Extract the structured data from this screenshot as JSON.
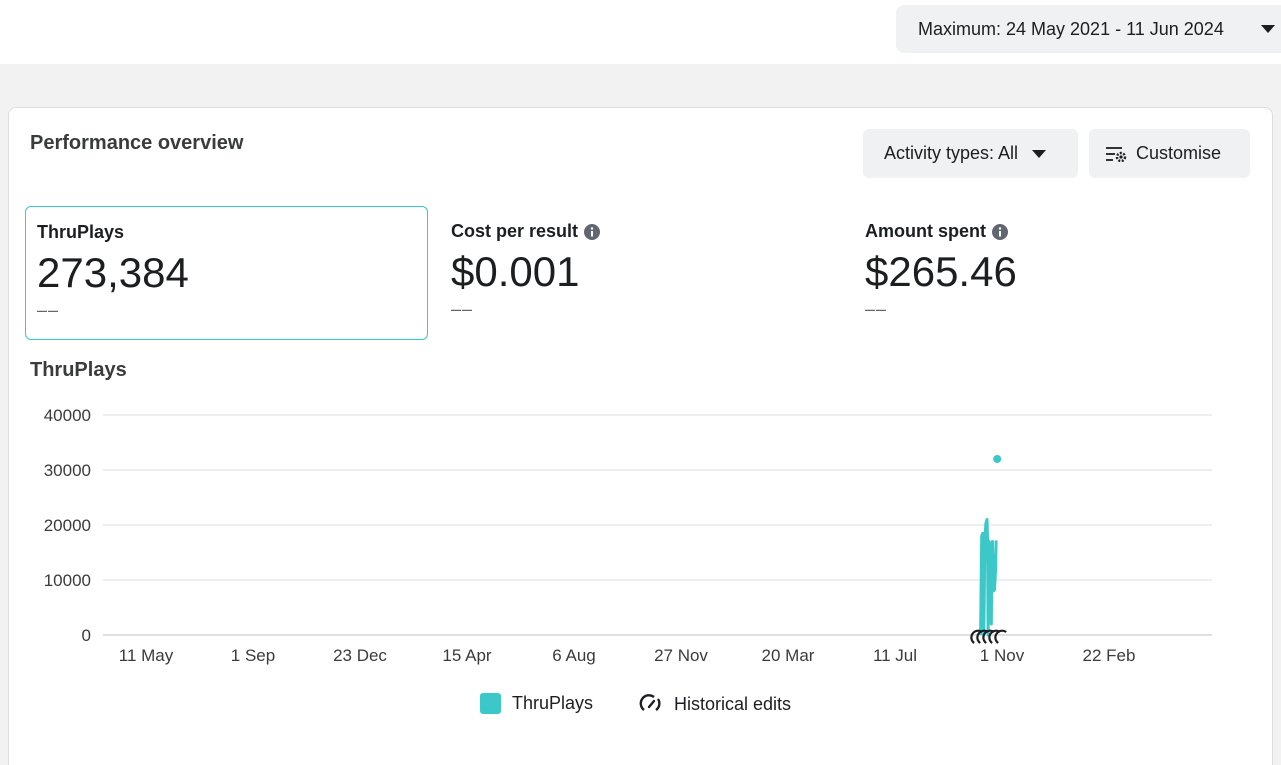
{
  "date_range": {
    "label": "Maximum: 24 May 2021 - 11 Jun 2024",
    "icon": "caret-down-icon"
  },
  "card": {
    "title": "Performance overview",
    "activity_button": {
      "label": "Activity types: All",
      "icon": "caret-down-icon"
    },
    "customise_button": {
      "label": "Customise",
      "icon": "customise-settings-icon"
    }
  },
  "metrics": {
    "thruplays": {
      "label": "ThruPlays",
      "value": "273,384",
      "delta": "––"
    },
    "cost_per_result": {
      "label": "Cost per result",
      "value": "$0.001",
      "delta": "––",
      "icon": "info-icon"
    },
    "amount_spent": {
      "label": "Amount spent",
      "value": "$265.46",
      "delta": "––",
      "icon": "info-icon"
    }
  },
  "chart_data": {
    "type": "line",
    "title": "ThruPlays",
    "xlabel": "",
    "ylabel": "",
    "ylim": [
      0,
      40000
    ],
    "y_ticks": [
      "0",
      "10000",
      "20000",
      "30000",
      "40000"
    ],
    "x_ticks": [
      "11 May",
      "1 Sep",
      "23 Dec",
      "15 Apr",
      "6 Aug",
      "27 Nov",
      "20 Mar",
      "11 Jul",
      "1 Nov",
      "22 Feb"
    ],
    "x_tick_positions": [
      0,
      1,
      2,
      3,
      4,
      5,
      6,
      7,
      8,
      9
    ],
    "grid": true,
    "legend_position": "bottom-center",
    "series": [
      {
        "name": "ThruPlays",
        "color": "#3cc8c8",
        "points": [
          [
            7.8,
            0
          ],
          [
            7.81,
            18000
          ],
          [
            7.82,
            18500
          ],
          [
            7.83,
            0
          ],
          [
            7.84,
            17600
          ],
          [
            7.85,
            20300
          ],
          [
            7.86,
            21000
          ],
          [
            7.865,
            17000
          ],
          [
            7.87,
            0
          ],
          [
            7.875,
            12000
          ],
          [
            7.88,
            17000
          ],
          [
            7.885,
            15000
          ],
          [
            7.89,
            8000
          ],
          [
            7.9,
            2000
          ],
          [
            7.905,
            12000
          ],
          [
            7.91,
            17000
          ],
          [
            7.915,
            14000
          ],
          [
            7.92,
            8000
          ],
          [
            7.93,
            8200
          ],
          [
            7.94,
            12000
          ],
          [
            7.945,
            17200
          ]
        ],
        "outlier": [
          7.955,
          32000
        ]
      }
    ],
    "historical_edits_markers": 5,
    "legend": [
      {
        "label": "ThruPlays",
        "color": "#3cc8c8"
      },
      {
        "label": "Historical edits",
        "icon": "historical-edits-icon"
      }
    ]
  }
}
